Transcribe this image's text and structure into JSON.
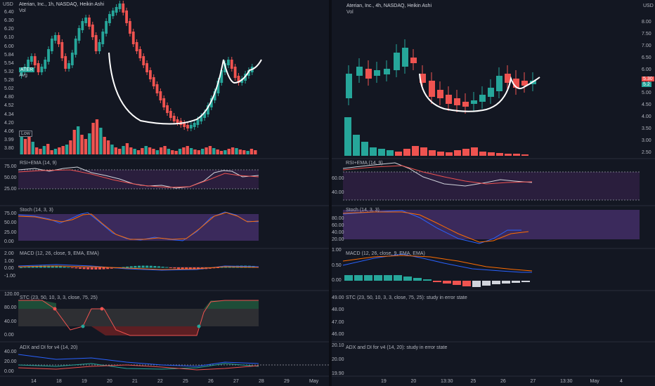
{
  "left": {
    "title": "Aterian, Inc., 1h, NASDAQ, Heikin Ashi",
    "currency": "USD",
    "vol": "Vol",
    "yaxis": [
      "6.40",
      "6.30",
      "6.20",
      "6.10",
      "6.00",
      "5.84",
      "5.54",
      "5.32",
      "5.28",
      "5.02",
      "4.80",
      "4.52",
      "4.34",
      "4.20",
      "4.06",
      "3.99",
      "3.80"
    ],
    "badges": {
      "ticker": "ATER",
      "avg": "Avg",
      "low": "Low"
    },
    "rsi_title": "RSI+EMA (14, 9)",
    "rsi_axis": [
      "75.00",
      "50.00",
      "25.00"
    ],
    "stoch_title": "Stoch (14, 3, 3)",
    "stoch_axis": [
      "75.00",
      "50.00",
      "25.00",
      "0.00"
    ],
    "macd_title": "MACD (12, 26, close, 9, EMA, EMA)",
    "macd_axis": [
      "2.00",
      "1.00",
      "0.00",
      "-1.00"
    ],
    "stc_title": "STC (23, 50, 10, 3, 3, close, 75, 25)",
    "stc_axis": [
      "120.00",
      "80.00",
      "40.00",
      "0.00"
    ],
    "adx_title": "ADX and DI for v4 (14, 20)",
    "adx_axis": [
      "40.00",
      "20.00",
      "0.00"
    ],
    "xaxis": [
      "14",
      "18",
      "19",
      "20",
      "21",
      "22",
      "25",
      "26",
      "27",
      "28",
      "29",
      "May"
    ]
  },
  "right": {
    "title": "Aterian, Inc., 4h, NASDAQ, Heikin Ashi",
    "currency": "USD",
    "vol": "Vol",
    "yaxis": [
      "8.00",
      "7.50",
      "7.00",
      "6.50",
      "6.00",
      "5.50",
      "5.00",
      "4.50",
      "4.00",
      "3.50",
      "3.00",
      "2.50"
    ],
    "price_labels": [
      "5.30",
      "5.2"
    ],
    "rsi_title": "RSI+EMA (14, 9)",
    "rsi_axis": [
      "60.00",
      "40.00"
    ],
    "stoch_title": "Stoch (14, 3, 3)",
    "stoch_axis": [
      "80.00",
      "60.00",
      "40.00",
      "20.00"
    ],
    "macd_title": "MACD (12, 26, close, 9, EMA, EMA)",
    "macd_axis": [
      "1.00",
      "0.50",
      "0.00"
    ],
    "stc_title": "STC (23, 50, 10, 3, 3, close, 75, 25): study in error state",
    "stc_axis": [
      "49.00",
      "48.00",
      "47.00",
      "46.00"
    ],
    "adx_title": "ADX and DI for v4 (14, 20): study in error state",
    "adx_axis": [
      "20.10",
      "20.00",
      "19.90"
    ],
    "xaxis": [
      "19",
      "20",
      "13:30",
      "25",
      "26",
      "27",
      "13:30",
      "May",
      "4"
    ]
  },
  "colors": {
    "bull": "#26a69a",
    "bear": "#ef5350",
    "rsiBg": "#2a1e3d",
    "stochBg": "#3b2a5c",
    "text": "#b2b5be"
  }
}
